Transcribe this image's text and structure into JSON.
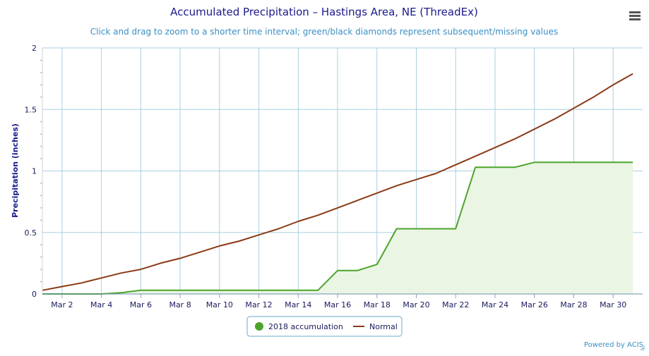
{
  "chart_data": {
    "type": "line",
    "title": "Accumulated Precipitation – Hastings Area, NE (ThreadEx)",
    "subtitle": "Click and drag to zoom to a shorter time interval; green/black diamonds represent subsequent/missing values",
    "ylabel": "Precipitation (inches)",
    "xlabel": "",
    "ylim": [
      0,
      2
    ],
    "y_ticks": [
      "0",
      "0.5",
      "1",
      "1.5",
      "2"
    ],
    "x_tick_labels": [
      "Mar 2",
      "Mar 4",
      "Mar 6",
      "Mar 8",
      "Mar 10",
      "Mar 12",
      "Mar 14",
      "Mar 16",
      "Mar 18",
      "Mar 20",
      "Mar 22",
      "Mar 24",
      "Mar 26",
      "Mar 28",
      "Mar 30"
    ],
    "x": [
      1,
      2,
      3,
      4,
      5,
      6,
      7,
      8,
      9,
      10,
      11,
      12,
      13,
      14,
      15,
      16,
      17,
      18,
      19,
      20,
      21,
      22,
      23,
      24,
      25,
      26,
      27,
      28,
      29,
      30,
      31
    ],
    "series": [
      {
        "name": "2018 accumulation",
        "color": "#4ca52a",
        "fill": "#eaf5e4",
        "values": [
          0,
          0,
          0,
          0,
          0.01,
          0.03,
          0.03,
          0.03,
          0.03,
          0.03,
          0.03,
          0.03,
          0.03,
          0.03,
          0.03,
          0.19,
          0.19,
          0.24,
          0.53,
          0.53,
          0.53,
          0.53,
          1.03,
          1.03,
          1.03,
          1.07,
          1.07,
          1.07,
          1.07,
          1.07,
          1.07
        ]
      },
      {
        "name": "Normal",
        "color": "#8b3a16",
        "values": [
          0.03,
          0.06,
          0.09,
          0.13,
          0.17,
          0.2,
          0.25,
          0.29,
          0.34,
          0.39,
          0.43,
          0.48,
          0.53,
          0.59,
          0.64,
          0.7,
          0.76,
          0.82,
          0.88,
          0.93,
          0.98,
          1.05,
          1.12,
          1.19,
          1.26,
          1.34,
          1.42,
          1.51,
          1.6,
          1.7,
          1.79
        ]
      }
    ],
    "grid": true,
    "legend_position": "bottom-center"
  },
  "credit": "Powered by ACIS",
  "menu_icon": "hamburger-menu-icon"
}
